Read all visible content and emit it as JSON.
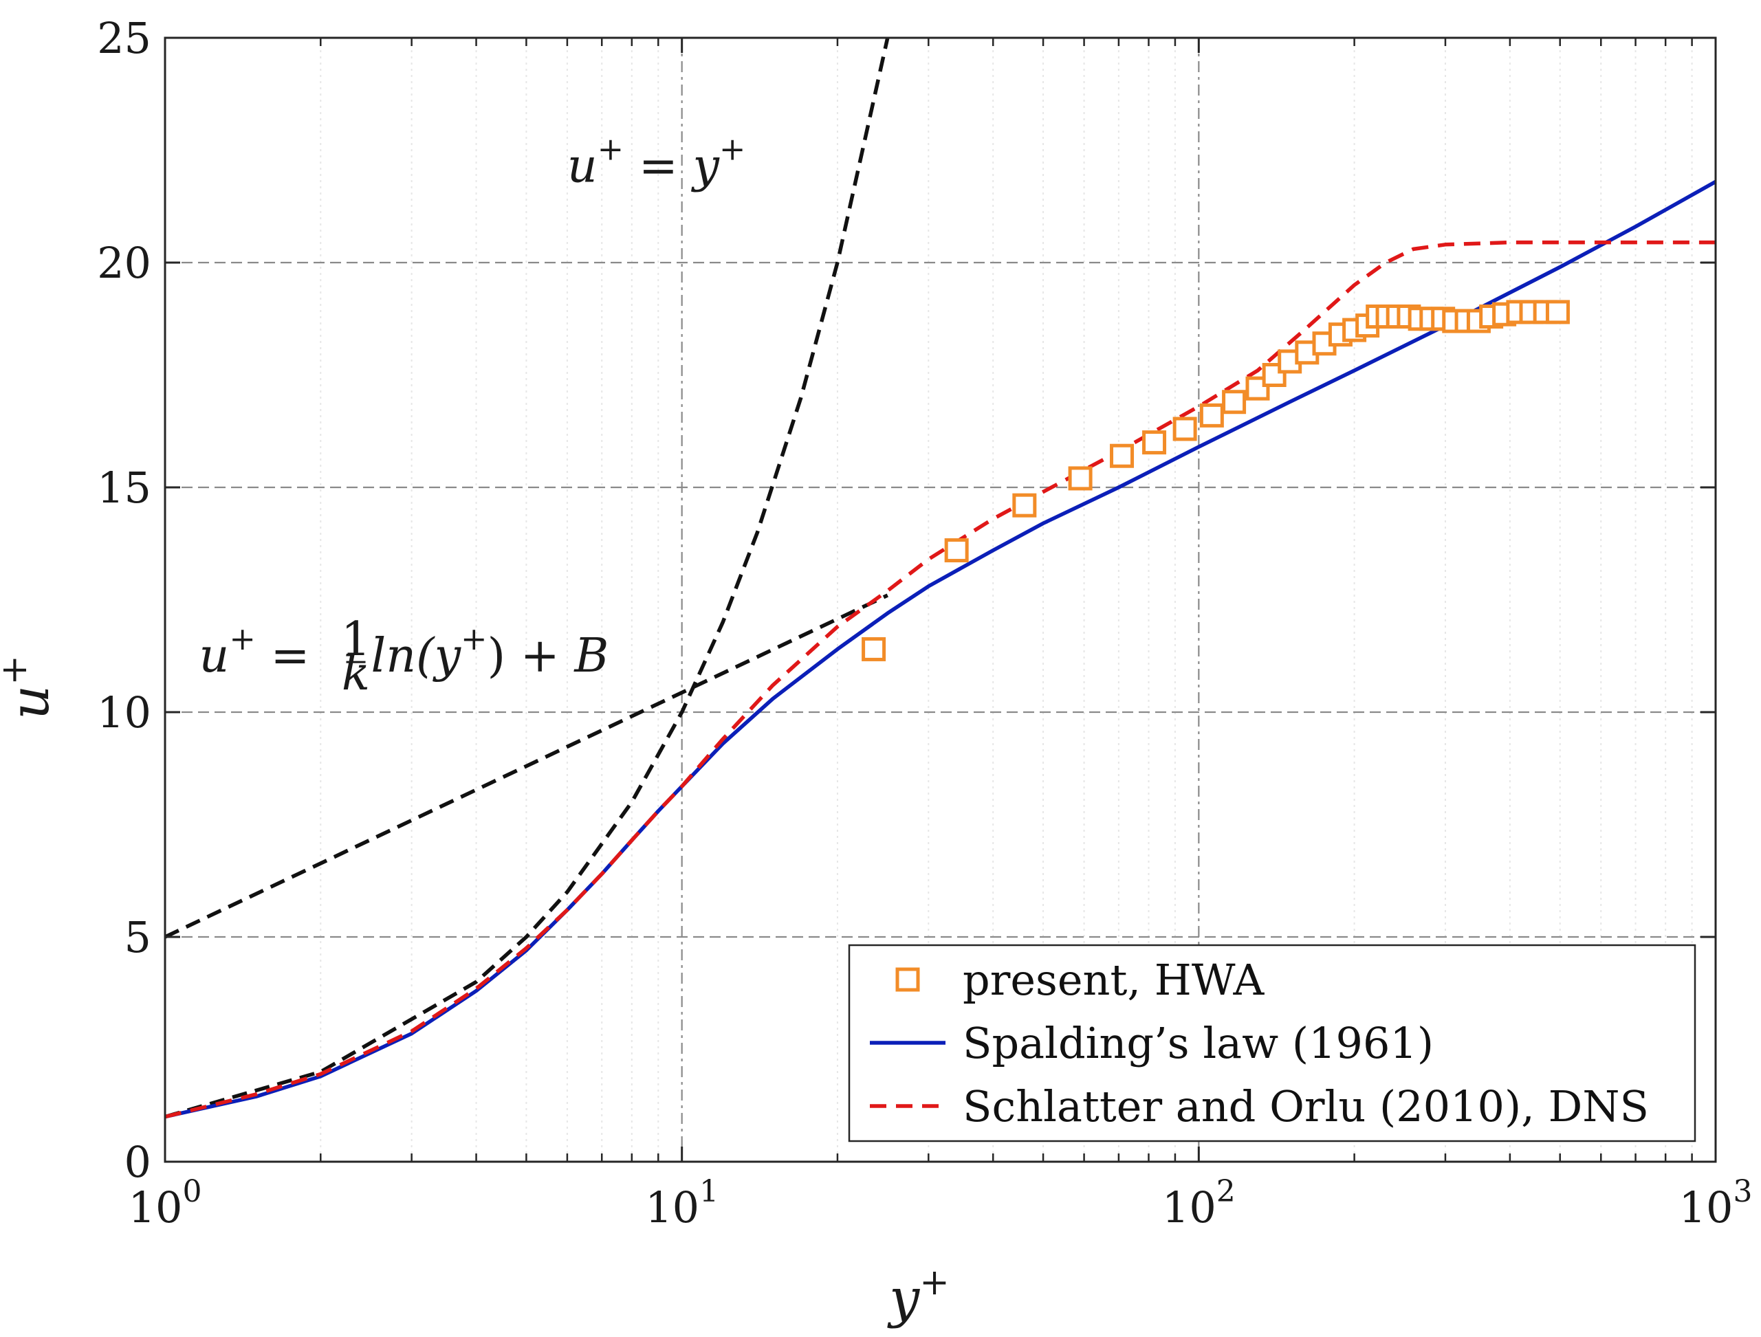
{
  "chart_data": {
    "type": "line",
    "title": "",
    "xlabel": "y+",
    "ylabel": "u+",
    "xscale": "log",
    "xlim": [
      1,
      1000
    ],
    "ylim": [
      0,
      25
    ],
    "grid": true,
    "legend_position": "bottom-right",
    "x_ticks": [
      {
        "value": 1,
        "base": "10",
        "exp": "0"
      },
      {
        "value": 10,
        "base": "10",
        "exp": "1"
      },
      {
        "value": 100,
        "base": "10",
        "exp": "2"
      },
      {
        "value": 1000,
        "base": "10",
        "exp": "3"
      }
    ],
    "y_ticks": [
      {
        "value": 0,
        "label": "0"
      },
      {
        "value": 5,
        "label": "5"
      },
      {
        "value": 10,
        "label": "10"
      },
      {
        "value": 15,
        "label": "15"
      },
      {
        "value": 20,
        "label": "20"
      },
      {
        "value": 25,
        "label": "25"
      }
    ],
    "annotations": {
      "linear_law": {
        "lhs": "u",
        "eq": " = ",
        "rhs": "y",
        "sup": "+",
        "anchor_x": 17,
        "anchor_y": 21.8
      },
      "log_law": {
        "lhs": "u",
        "eq": " = ",
        "num": "1",
        "den": "k",
        "func": "ln(y",
        "close": ")",
        "tail": " + B",
        "sup": "+",
        "anchor_x": 1.2,
        "anchor_y": 10.9
      }
    },
    "reference_lines": [
      {
        "name": "u+ = y+",
        "kind": "linear",
        "color": "#111111",
        "dash": true,
        "x": [
          1,
          2,
          4,
          5,
          6,
          8,
          10,
          12,
          14,
          17,
          20,
          25
        ],
        "y": [
          1,
          2,
          4,
          5,
          6,
          8,
          10,
          12,
          14,
          17,
          20,
          25
        ]
      },
      {
        "name": "u+ = 1/k ln(y+) + B",
        "kind": "loglaw",
        "color": "#111111",
        "dash": true,
        "x": [
          1,
          25
        ],
        "y": [
          5.0,
          12.6
        ]
      }
    ],
    "series": [
      {
        "name": "present, HWA",
        "style": "markers",
        "marker": "square",
        "color": "#f28c28",
        "x": [
          23.5,
          34,
          46,
          59,
          71,
          82,
          94,
          106,
          117,
          130,
          140,
          150,
          162,
          175,
          188,
          200,
          212,
          222,
          232,
          243,
          255,
          268,
          282,
          297,
          312,
          330,
          348,
          368,
          390,
          415,
          440,
          468,
          495
        ],
        "y": [
          11.4,
          13.6,
          14.6,
          15.2,
          15.7,
          16.0,
          16.3,
          16.6,
          16.9,
          17.2,
          17.5,
          17.8,
          18.0,
          18.2,
          18.4,
          18.5,
          18.6,
          18.8,
          18.8,
          18.8,
          18.8,
          18.75,
          18.75,
          18.75,
          18.7,
          18.7,
          18.7,
          18.8,
          18.85,
          18.9,
          18.9,
          18.9,
          18.9
        ]
      },
      {
        "name": "Spalding’s law (1961)",
        "style": "solid",
        "color": "#0b1fb8",
        "x": [
          1,
          1.5,
          2,
          3,
          4,
          5,
          6,
          7,
          8,
          9,
          10,
          12,
          15,
          20,
          25,
          30,
          40,
          50,
          70,
          100,
          150,
          200,
          300,
          500,
          700,
          1000
        ],
        "y": [
          1.0,
          1.45,
          1.9,
          2.85,
          3.8,
          4.7,
          5.6,
          6.4,
          7.15,
          7.8,
          8.35,
          9.3,
          10.3,
          11.4,
          12.2,
          12.8,
          13.6,
          14.2,
          15.0,
          15.9,
          16.9,
          17.6,
          18.6,
          19.9,
          20.8,
          21.8
        ]
      },
      {
        "name": "Schlatter and Orlu (2010), DNS",
        "style": "dashed",
        "color": "#e01818",
        "x": [
          1,
          1.5,
          2,
          3,
          4,
          5,
          6,
          7,
          8,
          9,
          10,
          12,
          15,
          20,
          25,
          30,
          40,
          50,
          70,
          100,
          130,
          160,
          200,
          230,
          260,
          300,
          400,
          500,
          700,
          1000
        ],
        "y": [
          1.0,
          1.5,
          1.95,
          2.9,
          3.85,
          4.75,
          5.6,
          6.4,
          7.15,
          7.8,
          8.35,
          9.4,
          10.6,
          11.9,
          12.7,
          13.4,
          14.3,
          14.9,
          15.8,
          16.8,
          17.6,
          18.5,
          19.5,
          20.0,
          20.3,
          20.4,
          20.45,
          20.45,
          20.45,
          20.45
        ]
      }
    ]
  }
}
